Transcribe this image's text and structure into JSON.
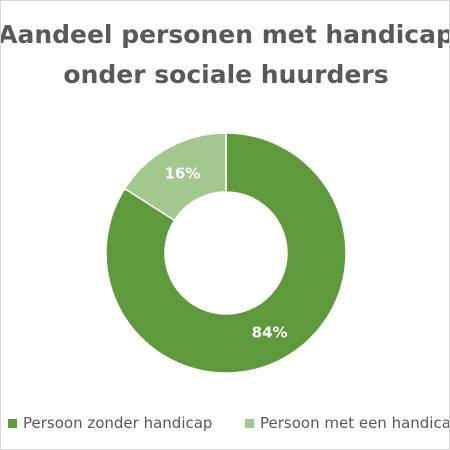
{
  "chart_data": {
    "type": "pie",
    "title": "Aandeel personen met handicap onder sociale huurders",
    "title_lines": [
      "Aandeel personen met handicap",
      "onder sociale huurders"
    ],
    "donut": true,
    "categories": [
      "Persoon zonder handicap",
      "Persoon met een handicap"
    ],
    "values": [
      84,
      16
    ],
    "data_labels": [
      "84%",
      "16%"
    ],
    "colors": [
      "#5e9a3b",
      "#a3c88f"
    ],
    "label_colors": [
      "#ffffff",
      "#ffffff"
    ],
    "legend_position": "bottom",
    "grid": false
  }
}
